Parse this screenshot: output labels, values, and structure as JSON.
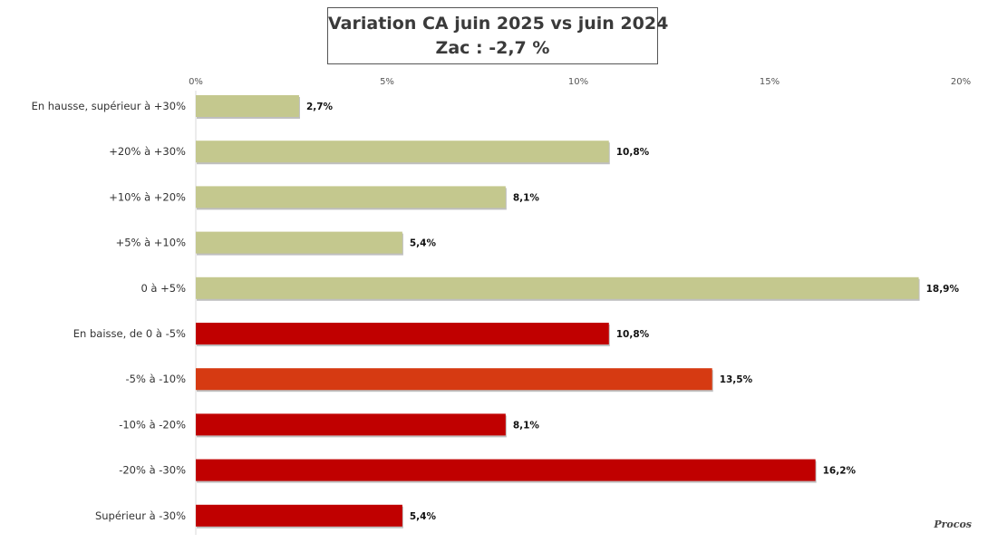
{
  "title": "Variation CA juin 2025 vs juin 2024",
  "subtitle": "Zac : -2,7 %",
  "brand": "Procos",
  "chart_data": {
    "type": "bar",
    "orientation": "horizontal",
    "xlim": [
      0,
      20
    ],
    "xticks": [
      {
        "value": 0,
        "label": "0%"
      },
      {
        "value": 5,
        "label": "5%"
      },
      {
        "value": 10,
        "label": "10%"
      },
      {
        "value": 15,
        "label": "15%"
      },
      {
        "value": 20,
        "label": "20%"
      }
    ],
    "categories": [
      "En hausse, supérieur à +30%",
      "+20% à +30%",
      "+10% à +20%",
      "+5% à +10%",
      "0 à +5%",
      "En baisse, de 0 à -5%",
      "-5% à -10%",
      "-10% à -20%",
      "-20% à -30%",
      "Supérieur à -30%"
    ],
    "values": [
      2.7,
      10.8,
      8.1,
      5.4,
      18.9,
      10.8,
      13.5,
      8.1,
      16.2,
      5.4
    ],
    "value_labels": [
      "2,7%",
      "10,8%",
      "8,1%",
      "5,4%",
      "18,9%",
      "10,8%",
      "13,5%",
      "8,1%",
      "16,2%",
      "5,4%"
    ],
    "colors": [
      "#c4c88e",
      "#c4c88e",
      "#c4c88e",
      "#c4c88e",
      "#c4c88e",
      "#c00000",
      "#d63a12",
      "#c00000",
      "#c00000",
      "#c00000"
    ],
    "grid": false,
    "legend": "none"
  }
}
